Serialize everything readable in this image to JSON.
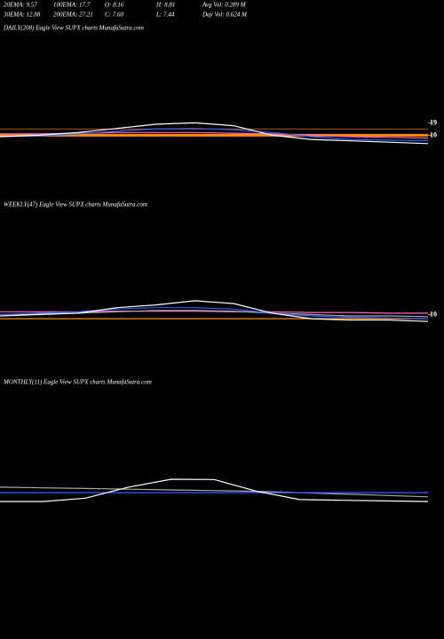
{
  "header": {
    "rows": [
      [
        "20EMA: 9.57",
        "100EMA: 17.7",
        "O: 8.16",
        "H: 8.81",
        "Avg Vol: 0.289 M"
      ],
      [
        "30EMA: 12.88",
        "200EMA: 27.21",
        "C: 7.60",
        "L: 7.44",
        "Day Vol: 0.624  M"
      ]
    ]
  },
  "chart_data": [
    {
      "type": "line",
      "title": "DAILY(208) Eagle   View  SUPX  charts MunafaSutra.com",
      "categories": [
        null,
        null,
        null,
        null,
        null,
        null,
        null,
        null,
        null,
        null,
        null,
        null
      ],
      "ylim": [
        0,
        45
      ],
      "yticks": [
        10,
        19
      ],
      "series": [
        {
          "color": "#ff8c00",
          "values": [
            10,
            10,
            10,
            10,
            10,
            10,
            10,
            10,
            10,
            10,
            10,
            10
          ]
        },
        {
          "color": "#8b4513",
          "values": [
            14.5,
            14.5,
            14.5,
            14.5,
            14.5,
            14.5,
            14.5,
            14.5,
            14.5,
            14.5,
            14.5,
            14.5
          ]
        },
        {
          "color": "#ff66cc",
          "values": [
            11,
            11,
            11.5,
            12,
            12,
            12,
            11.5,
            11,
            10,
            9,
            8.5,
            8
          ]
        },
        {
          "color": "#3060ff",
          "values": [
            9,
            9.5,
            11,
            13,
            14.5,
            15,
            14,
            12,
            9,
            7,
            6.5,
            6
          ]
        },
        {
          "color": "#ffffff",
          "values": [
            9,
            10,
            12,
            15,
            18,
            19,
            17,
            10,
            7,
            6,
            5,
            4
          ]
        }
      ]
    },
    {
      "type": "line",
      "title": "WEEKLY(47) Eagle   View  SUPX  charts MunafaSutra.com",
      "categories": [
        null,
        null,
        null,
        null,
        null,
        null,
        null,
        null,
        null,
        null,
        null,
        null
      ],
      "ylim": [
        0,
        45
      ],
      "yticks": [
        10
      ],
      "series": [
        {
          "color": "#ff8c00",
          "values": [
            7,
            7,
            7,
            7,
            7,
            7,
            7,
            7,
            7,
            7,
            7,
            7
          ]
        },
        {
          "color": "#ff66cc",
          "values": [
            12,
            12,
            12,
            12.5,
            12.5,
            12.5,
            12,
            12,
            11.5,
            11.5,
            11,
            11
          ]
        },
        {
          "color": "#aaaaaa",
          "values": [
            10,
            10.5,
            11,
            12,
            13,
            13,
            12.5,
            11,
            10,
            9,
            9,
            8.5
          ]
        },
        {
          "color": "#3060ff",
          "values": [
            10,
            11,
            12,
            14,
            15,
            15,
            14,
            11,
            9,
            8,
            7.5,
            7
          ]
        },
        {
          "color": "#ffffff",
          "values": [
            9,
            10,
            11,
            15,
            17,
            20,
            18,
            11,
            7,
            6,
            6,
            5
          ]
        }
      ]
    },
    {
      "type": "line",
      "title": "MONTHLY(11) Eagle   View  SUPX  charts MunafaSutra.com",
      "categories": [
        null,
        null,
        null,
        null,
        null,
        null,
        null,
        null,
        null,
        null,
        null
      ],
      "ylim": [
        0,
        45
      ],
      "yticks": [],
      "series": [
        {
          "color": "#aaaaaa",
          "values": [
            20,
            19.5,
            19,
            18.5,
            18,
            17.5,
            17,
            16,
            15,
            14,
            13
          ]
        },
        {
          "color": "#3060ff",
          "values": [
            16,
            16,
            16,
            16,
            16,
            16,
            16,
            16,
            16,
            16,
            16
          ]
        },
        {
          "color": "#ffffff",
          "values": [
            9.6,
            9.6,
            12,
            20,
            25.7,
            25.5,
            17,
            11,
            10.5,
            10,
            9.6
          ]
        }
      ]
    }
  ]
}
